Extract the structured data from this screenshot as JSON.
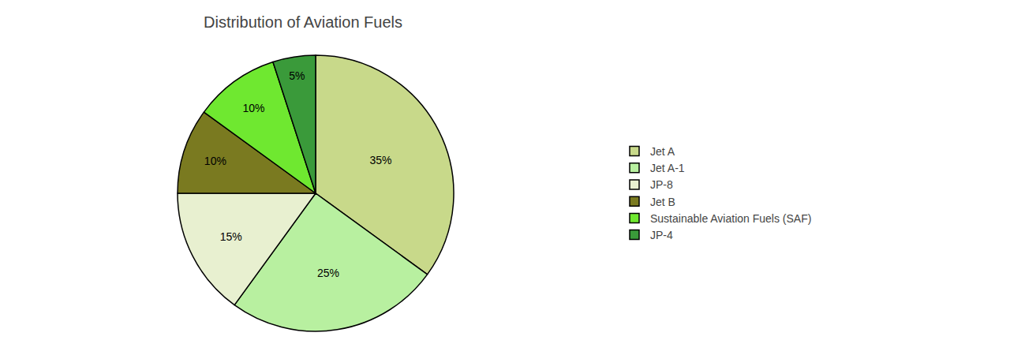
{
  "chart_data": {
    "type": "pie",
    "title": "Distribution of Aviation Fuels",
    "categories": [
      "Jet A",
      "Jet A-1",
      "JP-8",
      "Jet B",
      "Sustainable Aviation Fuels (SAF)",
      "JP-4"
    ],
    "values": [
      35,
      25,
      15,
      10,
      10,
      5
    ],
    "value_labels": [
      "35%",
      "25%",
      "15%",
      "10%",
      "10%",
      "5%"
    ],
    "colors": [
      "#c8d98a",
      "#b8f0a0",
      "#e8f0d0",
      "#7a7a20",
      "#6fe830",
      "#3a9a3a"
    ],
    "data_labels": true,
    "legend": "right"
  }
}
